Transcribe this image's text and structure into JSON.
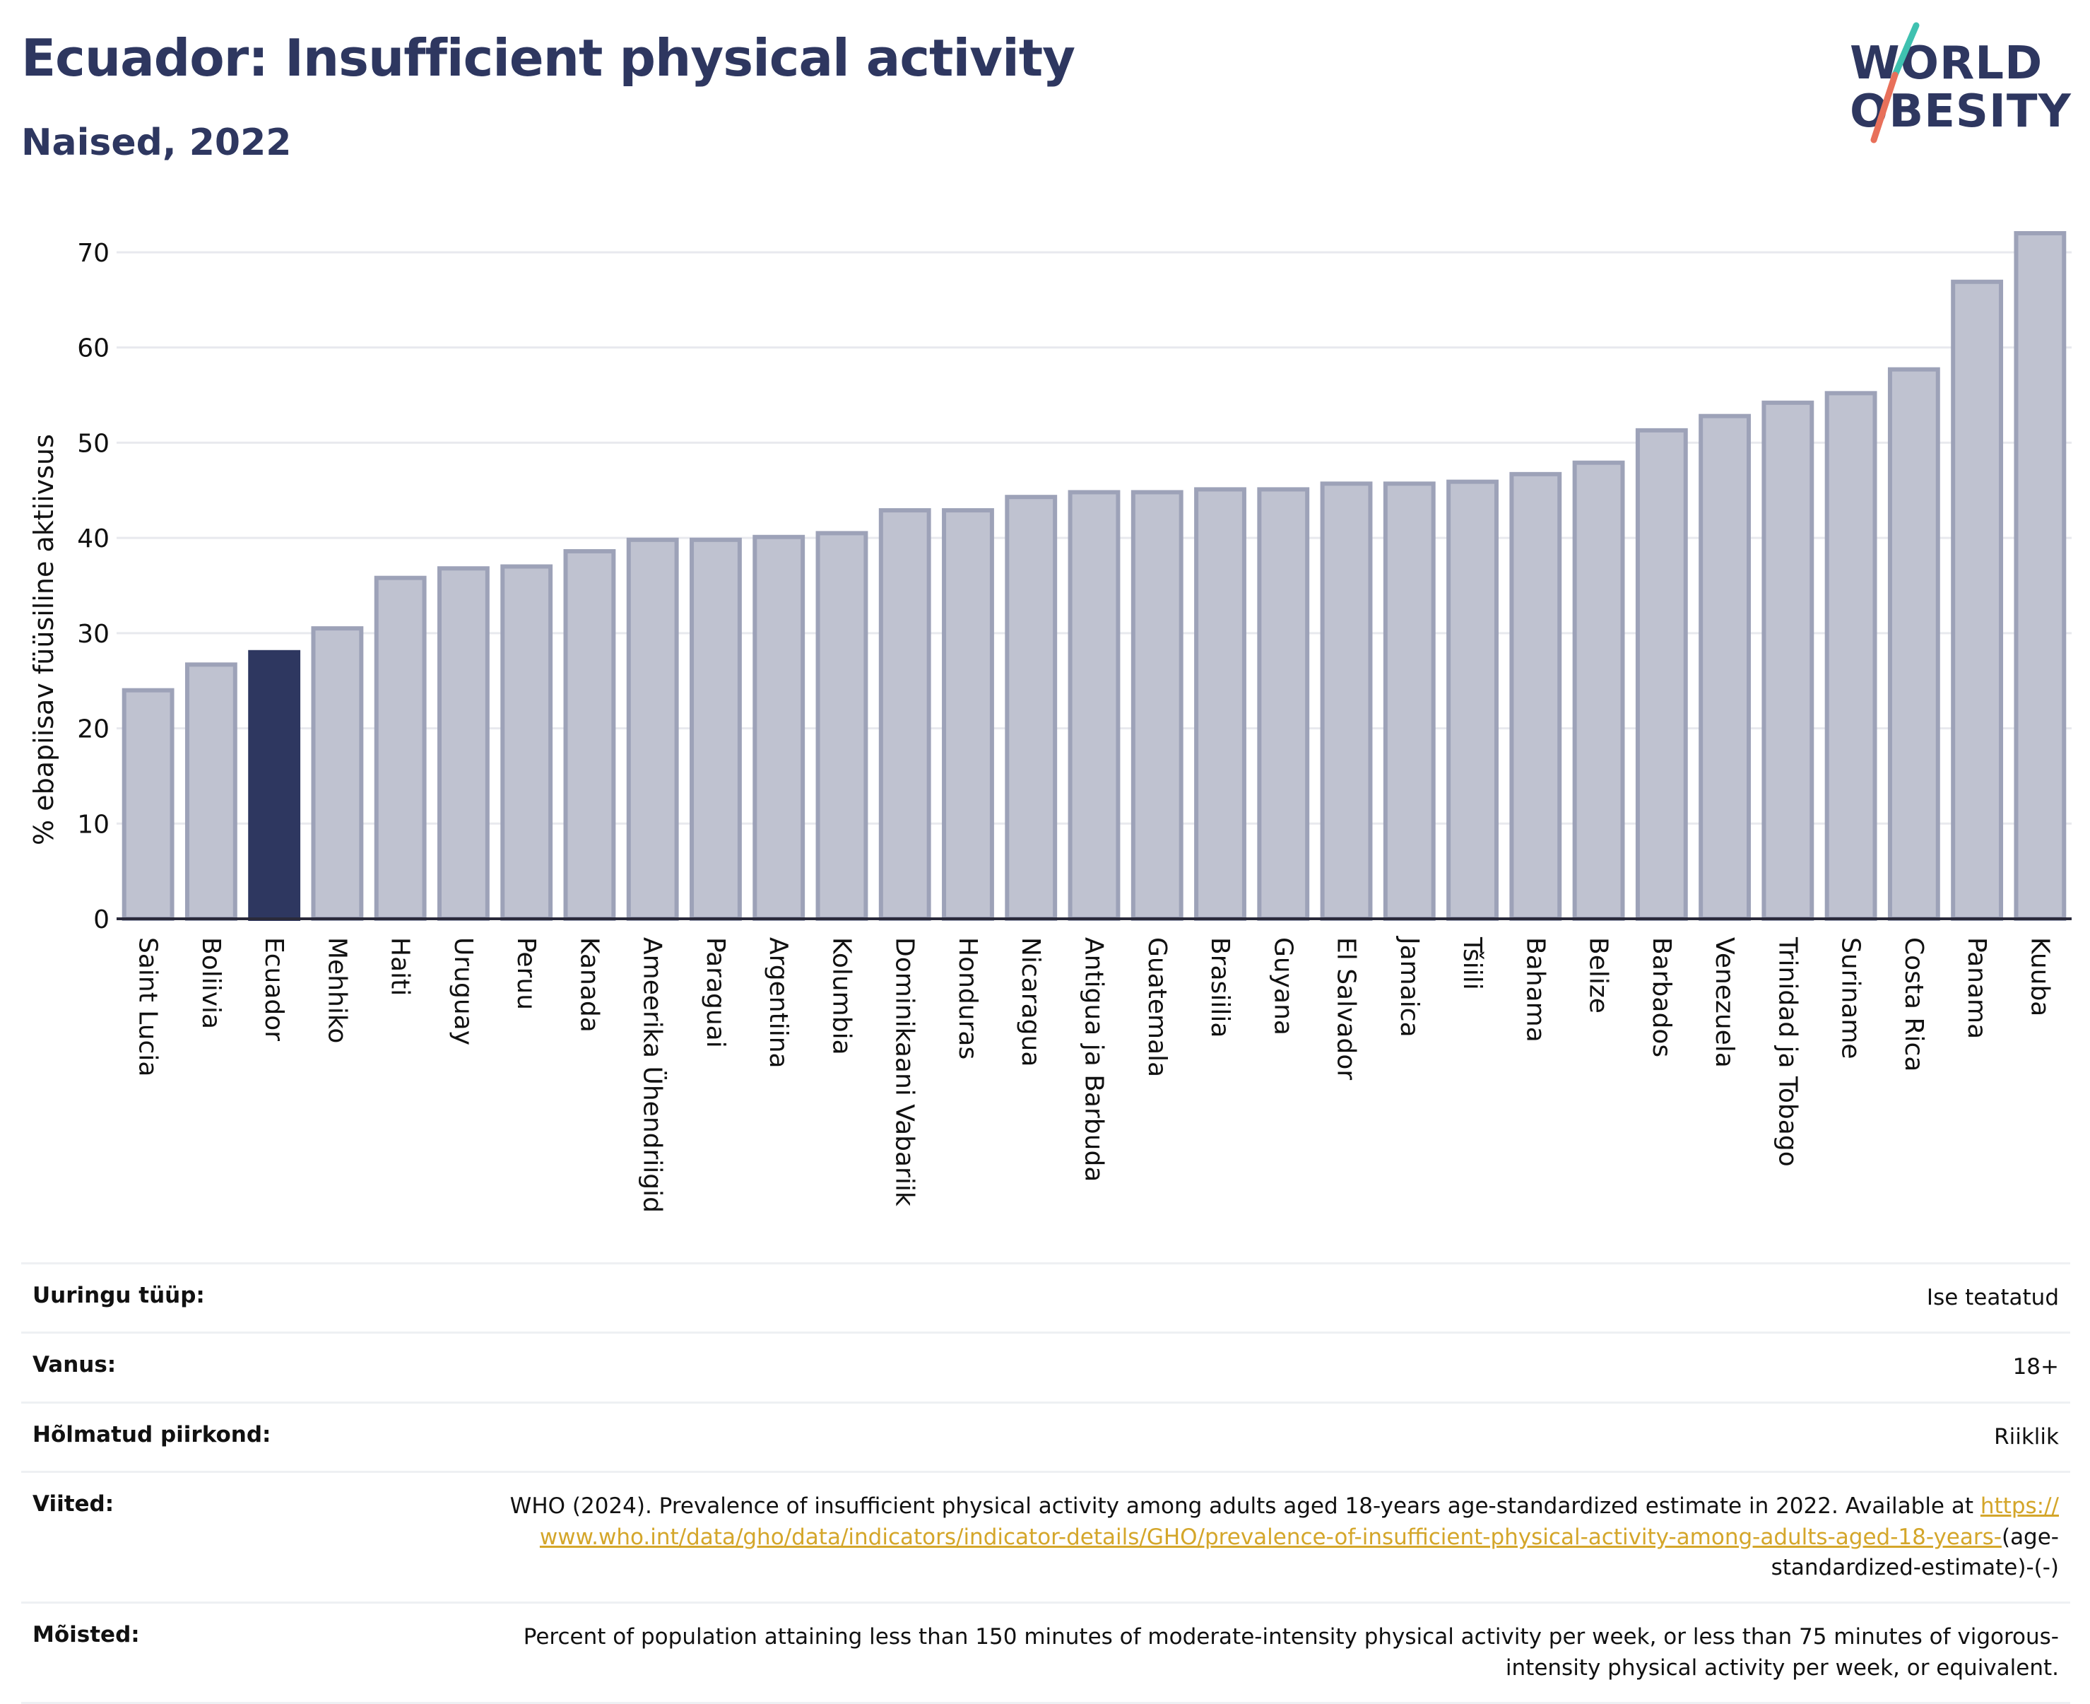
{
  "header": {
    "title": "Ecuador: Insufficient physical activity",
    "subtitle": "Naised, 2022"
  },
  "logo": {
    "line1": "WORLD",
    "line2": "OBESITY",
    "accent_teal": "#3fc1b0",
    "accent_red": "#e8705a"
  },
  "colors": {
    "bar": "#bfc2d0",
    "bar_border": "#9da2b8",
    "highlight": "#2e3760",
    "text": "#2e3760"
  },
  "chart_data": {
    "type": "bar",
    "ylabel": "% ebapiisav füüsiline aktiivsus",
    "ylim": [
      0,
      72
    ],
    "yticks": [
      0,
      10,
      20,
      30,
      40,
      50,
      60,
      70
    ],
    "grid": true,
    "highlight": "Ecuador",
    "categories": [
      "Saint Lucia",
      "Boliivia",
      "Ecuador",
      "Mehhiko",
      "Haiti",
      "Uruguay",
      "Peruu",
      "Kanada",
      "Ameerika Ühendriigid",
      "Paraguai",
      "Argentiina",
      "Kolumbia",
      "Dominikaani Vabariik",
      "Honduras",
      "Nicaragua",
      "Antigua ja Barbuda",
      "Guatemala",
      "Brasiilia",
      "Guyana",
      "El Salvador",
      "Jamaica",
      "Tšiili",
      "Bahama",
      "Belize",
      "Barbados",
      "Venezuela",
      "Trinidad ja Tobago",
      "Suriname",
      "Costa Rica",
      "Panama",
      "Kuuba"
    ],
    "values": [
      24,
      26.7,
      28,
      30.5,
      35.8,
      36.8,
      37,
      38.6,
      39.8,
      39.8,
      40.1,
      40.5,
      42.9,
      42.9,
      44.3,
      44.8,
      44.8,
      45.1,
      45.1,
      45.7,
      45.7,
      45.9,
      46.7,
      47.9,
      51.3,
      52.8,
      54.2,
      55.2,
      57.7,
      66.9,
      72
    ]
  },
  "meta": {
    "rows": [
      {
        "label": "Uuringu tüüp:",
        "value": "Ise teatatud"
      },
      {
        "label": "Vanus:",
        "value": "18+"
      },
      {
        "label": "Hõlmatud piirkond:",
        "value": "Riiklik"
      }
    ],
    "references": {
      "label": "Viited:",
      "text": "WHO (2024). Prevalence of insufficient physical activity among adults aged 18-years age-standardized estimate in 2022. Available at",
      "link": "https://www.who.int/data/gho/data/indicators/indicator-details/GHO/prevalence-of-insufficient-physical-activity-among-adults-aged-18-years-",
      "suffix": "(age-standardized-estimate)-(-)"
    },
    "definitions": {
      "label": "Mõisted:",
      "value": "Percent of population attaining less than 150 minutes of moderate-intensity physical activity per week, or less than 75 minutes of vigorous-intensity physical activity per week, or equivalent."
    }
  }
}
